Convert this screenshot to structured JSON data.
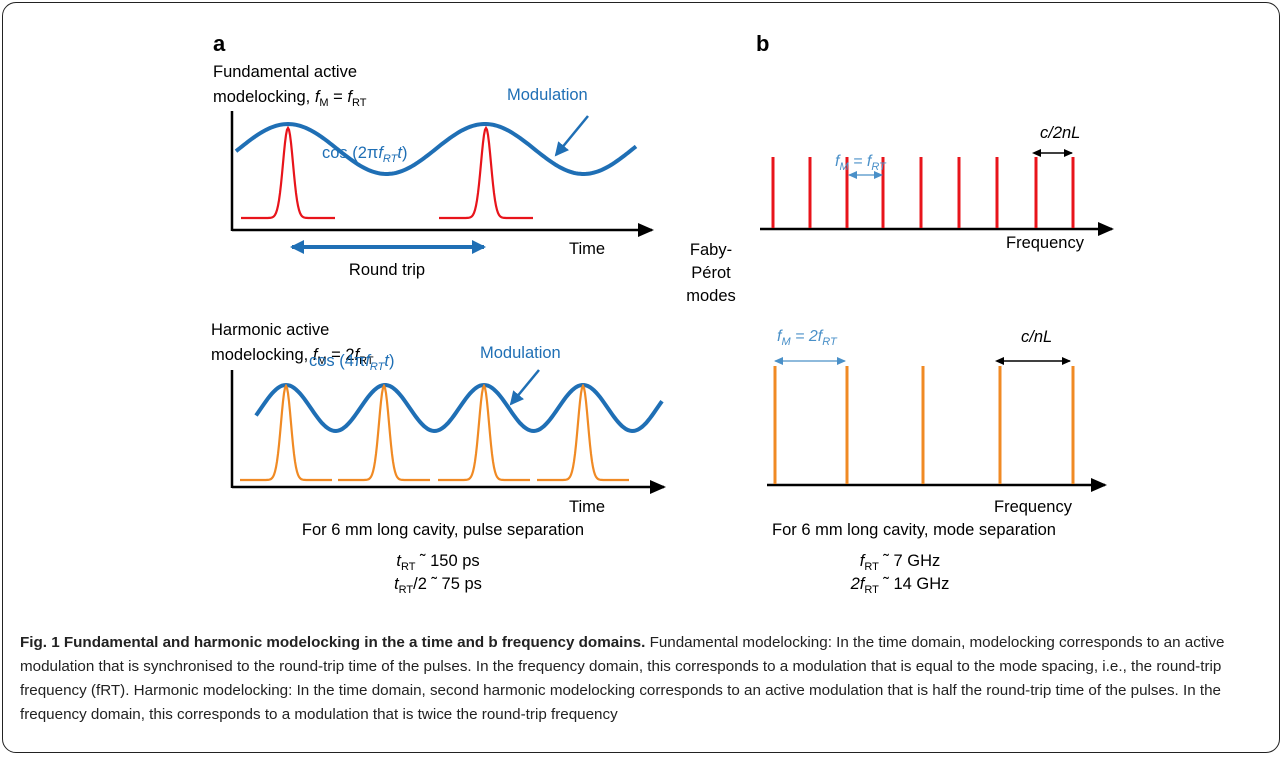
{
  "panel_a": {
    "label": "a",
    "fundamental": {
      "title_line1": "Fundamental active",
      "title_line2_prefix": "modelocking, ",
      "title_f": "f",
      "title_sub1": "M",
      "title_eq": " = ",
      "title_sub2": "RT",
      "cos_prefix": "cos (2π",
      "cos_f": "f",
      "cos_sub": "RT",
      "cos_t": "t",
      "cos_suffix": ")",
      "modulation_label": "Modulation",
      "time_label": "Time",
      "round_trip_label": "Round trip"
    },
    "harmonic": {
      "title_line1": "Harmonic active",
      "title_line2_prefix": "modelocking, ",
      "title_f": "f",
      "title_sub1": "M",
      "title_eq": " = 2",
      "title_sub2": "RT",
      "cos_prefix": "cos (4π",
      "cos_f": "f",
      "cos_sub": "RT",
      "cos_t": "t",
      "cos_suffix": ")",
      "modulation_label": "Modulation",
      "time_label": "Time"
    },
    "footer_line": "For 6 mm long cavity, pulse separation",
    "footer_val1_sub": "RT",
    "footer_val1_rest": " ˜ 150 ps",
    "footer_val2_sub": "RT",
    "footer_val2_rest": "/2 ˜ 75 ps"
  },
  "middle_label": {
    "line1": "Faby-",
    "line2": "Pérot",
    "line3": "modes"
  },
  "panel_b": {
    "label": "b",
    "fundamental": {
      "spacing_label_pre": "f",
      "spacing_sub1": "M",
      "spacing_eq": " = f",
      "spacing_sub2": "RT",
      "mode_spacing_label": "c/2nL",
      "freq_label": "Frequency"
    },
    "harmonic": {
      "spacing_label_pre": "f",
      "spacing_sub1": "M",
      "spacing_eq": " = 2f",
      "spacing_sub2": "RT",
      "mode_spacing_label": "c/nL",
      "freq_label": "Frequency"
    },
    "footer_line": "For 6 mm long cavity, mode separation",
    "footer_val1_sub": "RT",
    "footer_val1_rest": " ˜ 7 GHz",
    "footer_val2_pre": "2f",
    "footer_val2_sub": "RT",
    "footer_val2_rest": " ˜ 14 GHz"
  },
  "colors": {
    "modulation": "#1f6fb5",
    "pulse_fundamental": "#e8141b",
    "pulse_harmonic": "#f08a24",
    "axis": "#000000"
  },
  "caption": {
    "title": "Fig. 1 Fundamental and harmonic modelocking in the a time and b frequency domains.",
    "body": "Fundamental modelocking: In the time domain, modelocking corresponds to an active modulation that is synchronised to the round-trip time of the pulses. In the frequency domain, this corresponds to a modulation that is equal to the mode spacing, i.e., the round-trip frequency (fRT). Harmonic modelocking: In the time domain, second harmonic modelocking corresponds to an active modulation that is half the round-trip time of the pulses. In the frequency domain, this corresponds to a modulation that is twice the round-trip frequency"
  }
}
